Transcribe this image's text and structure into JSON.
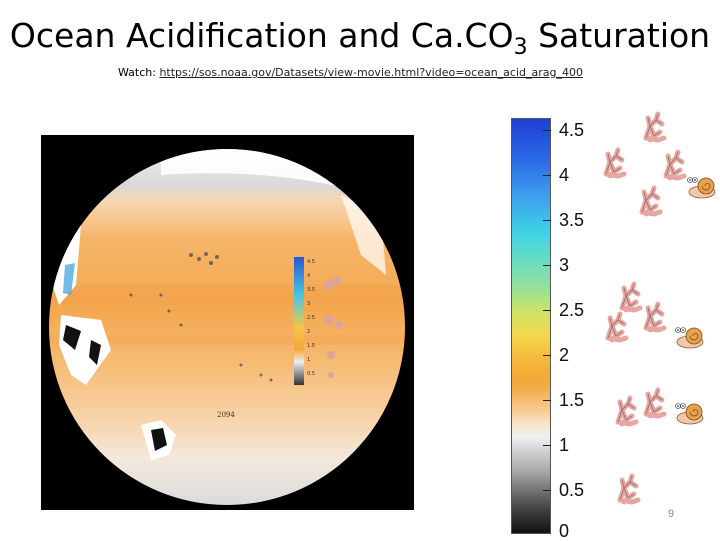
{
  "slide": {
    "title_main": "Ocean Acidification and Ca.CO",
    "title_sub": "3",
    "title_end": " Saturation",
    "watch_label": "Watch: ",
    "watch_link": "https://sos.noaa.gov/Datasets/view-movie.html?video=ocean_acid_arag_400",
    "page_number": "9"
  },
  "map": {
    "year_label": "2094",
    "inset_ticks": [
      "4.5",
      "4",
      "3.5",
      "3",
      "2.5",
      "2",
      "1.5",
      "1",
      "0.5"
    ]
  },
  "colorbar": {
    "min": 0,
    "max": 4.5,
    "ticks": [
      "4.5",
      "4",
      "3.5",
      "3",
      "2.5",
      "2",
      "1.5",
      "1",
      "0.5",
      "0"
    ]
  },
  "critters": {
    "rows": [
      {
        "corals": 4,
        "snail": "healthy"
      },
      {
        "corals": 3,
        "snail": "worried"
      },
      {
        "corals": 2,
        "snail": "worried"
      },
      {
        "corals": 1,
        "snail": "none"
      }
    ]
  }
}
